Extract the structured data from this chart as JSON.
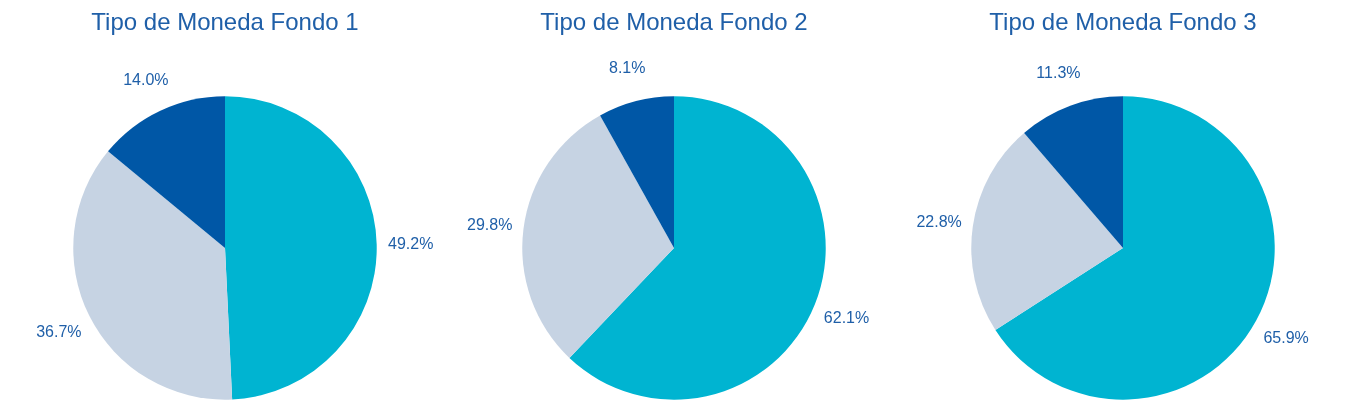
{
  "chart_data": [
    {
      "type": "pie",
      "title": "Tipo de Moneda Fondo 1",
      "categories": [
        null,
        null,
        null
      ],
      "values": [
        49.2,
        36.7,
        14.0
      ],
      "colors": [
        "#00b4d1",
        "#c6d3e3",
        "#0057a6"
      ],
      "value_labels": [
        "49.2%",
        "36.7%",
        "14.0%"
      ]
    },
    {
      "type": "pie",
      "title": "Tipo de Moneda Fondo 2",
      "categories": [
        null,
        null,
        null
      ],
      "values": [
        62.1,
        29.8,
        8.1
      ],
      "colors": [
        "#00b4d1",
        "#c6d3e3",
        "#0057a6"
      ],
      "value_labels": [
        "62.1%",
        "29.8%",
        "8.1%"
      ]
    },
    {
      "type": "pie",
      "title": "Tipo de Moneda Fondo 3",
      "categories": [
        null,
        null,
        null
      ],
      "values": [
        65.9,
        22.8,
        11.3
      ],
      "colors": [
        "#00b4d1",
        "#c6d3e3",
        "#0057a6"
      ],
      "value_labels": [
        "65.9%",
        "22.8%",
        "11.3%"
      ]
    }
  ]
}
